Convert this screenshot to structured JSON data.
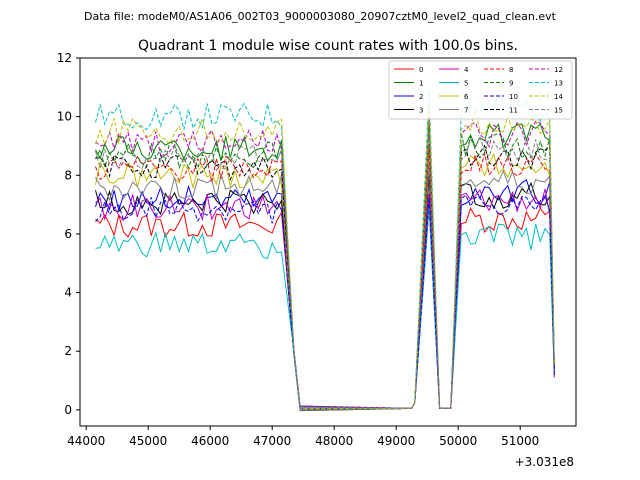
{
  "chart_data": {
    "type": "line",
    "suptitle": "Data file: modeM0/AS1A06_002T03_9000003080_20907cztM0_level2_quad_clean.evt",
    "title": "Quadrant 1 module wise count rates with 100.0s bins.",
    "xlabel": "",
    "ylabel": "",
    "x_offset_label": "+3.031e8",
    "xlim": [
      43900,
      51900
    ],
    "ylim": [
      -0.55,
      12
    ],
    "xticks": [
      44000,
      45000,
      46000,
      47000,
      48000,
      49000,
      50000,
      51000
    ],
    "xtick_labels": [
      "44000",
      "45000",
      "46000",
      "47000",
      "48000",
      "49000",
      "50000",
      "51000"
    ],
    "yticks": [
      0,
      2,
      4,
      6,
      8,
      10,
      12
    ],
    "ytick_labels": [
      "0",
      "2",
      "4",
      "6",
      "8",
      "10",
      "12"
    ],
    "legend_position": "top-right",
    "time_grid": {
      "segment1": {
        "start": 44150,
        "step": 75,
        "count": 41
      },
      "drop_points": [
        [
          47350,
          2.0
        ],
        [
          47450,
          0.05
        ]
      ],
      "flat": {
        "start": 47450,
        "end": 49250,
        "value": 0.05
      },
      "peak1": {
        "rise_from": 49300,
        "peak_x": 49530,
        "fall_to": 49700
      },
      "flat2": {
        "start": 49700,
        "end": 49880,
        "value": 0.05
      },
      "segment2": {
        "start": 50050,
        "step": 75,
        "count": 20
      },
      "end_point": 51550
    },
    "series": [
      {
        "name": "0",
        "color": "#ff0000",
        "dash": "solid",
        "level1": 6.3,
        "level2": 6.5,
        "peak": 7.5,
        "end": 1.1
      },
      {
        "name": "1",
        "color": "#008000",
        "dash": "solid",
        "level1": 8.9,
        "level2": 9.3,
        "peak": 10.0,
        "end": 1.5
      },
      {
        "name": "2",
        "color": "#0000ff",
        "dash": "solid",
        "level1": 7.2,
        "level2": 7.4,
        "peak": 7.0,
        "end": 1.3
      },
      {
        "name": "3",
        "color": "#000000",
        "dash": "solid",
        "level1": 7.1,
        "level2": 7.3,
        "peak": 8.0,
        "end": 1.4
      },
      {
        "name": "4",
        "color": "#bf00bf",
        "dash": "solid",
        "level1": 6.9,
        "level2": 7.1,
        "peak": 7.3,
        "end": 1.3
      },
      {
        "name": "5",
        "color": "#00bfbf",
        "dash": "solid",
        "level1": 5.6,
        "level2": 5.9,
        "peak": 6.8,
        "end": 1.2
      },
      {
        "name": "6",
        "color": "#bfbf00",
        "dash": "solid",
        "level1": 8.0,
        "level2": 8.3,
        "peak": 9.2,
        "end": 1.5
      },
      {
        "name": "7",
        "color": "#808080",
        "dash": "solid",
        "level1": 7.6,
        "level2": 7.8,
        "peak": 8.5,
        "end": 1.4
      },
      {
        "name": "8",
        "color": "#ff0000",
        "dash": "dashed",
        "level1": 8.2,
        "level2": 8.4,
        "peak": 9.0,
        "end": 1.4
      },
      {
        "name": "9",
        "color": "#008000",
        "dash": "dashed",
        "level1": 8.7,
        "level2": 9.0,
        "peak": 9.7,
        "end": 1.5
      },
      {
        "name": "10",
        "color": "#0000ff",
        "dash": "dashed",
        "level1": 6.8,
        "level2": 6.9,
        "peak": 7.2,
        "end": 1.2
      },
      {
        "name": "11",
        "color": "#000000",
        "dash": "dashed",
        "level1": 8.3,
        "level2": 8.6,
        "peak": 9.3,
        "end": 1.5
      },
      {
        "name": "12",
        "color": "#bf00bf",
        "dash": "dashed",
        "level1": 9.1,
        "level2": 9.4,
        "peak": 10.1,
        "end": 1.6
      },
      {
        "name": "13",
        "color": "#00bfbf",
        "dash": "dashed",
        "level1": 10.0,
        "level2": 10.3,
        "peak": 11.0,
        "end": 1.7
      },
      {
        "name": "14",
        "color": "#bfbf00",
        "dash": "dashed",
        "level1": 9.5,
        "level2": 9.8,
        "peak": 10.5,
        "end": 1.6
      },
      {
        "name": "15",
        "color": "#808080",
        "dash": "dashed",
        "level1": 8.6,
        "level2": 8.9,
        "peak": 9.5,
        "end": 1.5
      }
    ]
  }
}
